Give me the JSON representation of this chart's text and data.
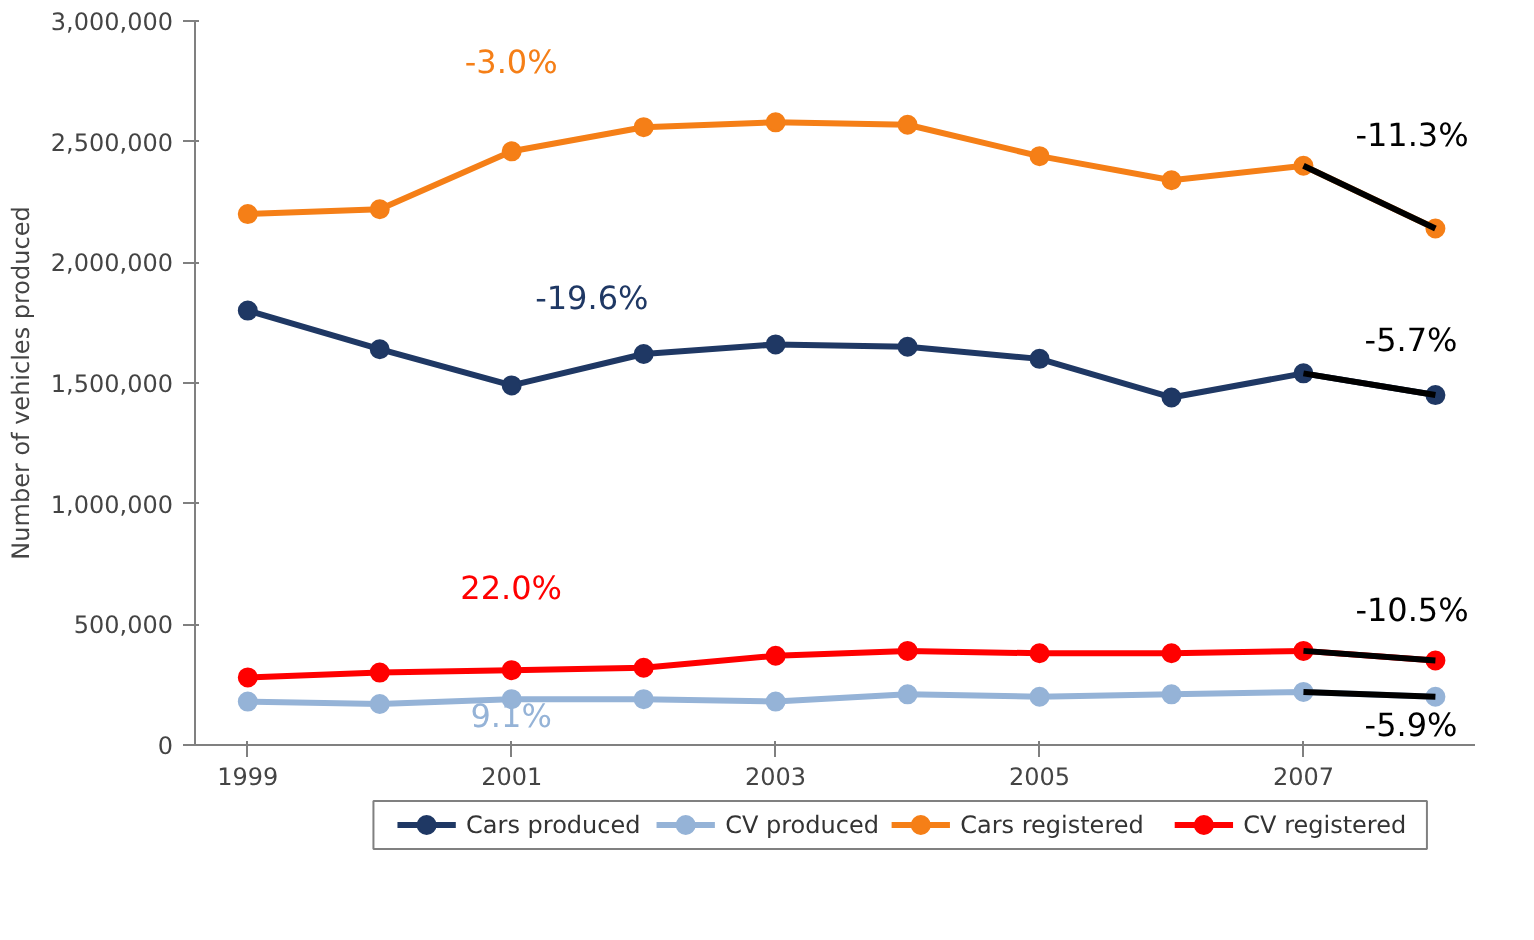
{
  "chart_data": {
    "type": "line",
    "ylabel": "Number of vehicles produced",
    "x": [
      1999,
      2000,
      2001,
      2002,
      2003,
      2004,
      2005,
      2006,
      2007,
      2008
    ],
    "series": [
      {
        "name": "Cars produced",
        "color": "#1f3864",
        "values": [
          1800000,
          1640000,
          1490000,
          1620000,
          1660000,
          1650000,
          1600000,
          1440000,
          1540000,
          1450000
        ]
      },
      {
        "name": "CV produced",
        "color": "#95b3d7",
        "values": [
          180000,
          170000,
          190000,
          190000,
          180000,
          210000,
          200000,
          210000,
          220000,
          200000
        ]
      },
      {
        "name": "Cars registered",
        "color": "#f57f17",
        "values": [
          2200000,
          2220000,
          2460000,
          2560000,
          2580000,
          2570000,
          2440000,
          2340000,
          2400000,
          2140000
        ]
      },
      {
        "name": "CV registered",
        "color": "#ff0000",
        "values": [
          280000,
          300000,
          310000,
          320000,
          370000,
          390000,
          380000,
          380000,
          390000,
          350000
        ]
      },
      {
        "color": "#000000",
        "values": [
          null,
          null,
          null,
          null,
          null,
          null,
          null,
          null,
          1540000,
          1450000
        ],
        "marker": "none"
      },
      {
        "color": "#000000",
        "values": [
          null,
          null,
          null,
          null,
          null,
          null,
          null,
          null,
          220000,
          200000
        ],
        "marker": "none"
      },
      {
        "color": "#000000",
        "values": [
          null,
          null,
          null,
          null,
          null,
          null,
          null,
          null,
          2400000,
          2140000
        ],
        "marker": "none"
      },
      {
        "color": "#000000",
        "values": [
          null,
          null,
          null,
          null,
          null,
          null,
          null,
          null,
          390000,
          350000
        ],
        "marker": "none"
      }
    ],
    "annotations": [
      "-19.6%",
      "9.1%",
      "-3.0%",
      "22.0%",
      "-5.7%",
      "-5.9%",
      "-11.3%",
      "-10.5%"
    ],
    "xlim": [
      1998.6,
      2008.3
    ],
    "xticks": [
      1999,
      2001,
      2003,
      2005,
      2007
    ],
    "ylim": [
      0,
      3000000
    ],
    "yticks": [
      0,
      {
        "value": 500000,
        "label": "500,000"
      },
      {
        "value": 1000000,
        "label": "1,000,000"
      },
      {
        "value": 1500000,
        "label": "1,500,000"
      },
      {
        "value": 2000000,
        "label": "2,000,000"
      },
      {
        "value": 2500000,
        "label": "2,500,000"
      },
      {
        "value": 3000000,
        "label": "3,000,000"
      }
    ],
    "marker": "circle",
    "line_style": "solid",
    "grid": false,
    "legend": "bottom"
  }
}
